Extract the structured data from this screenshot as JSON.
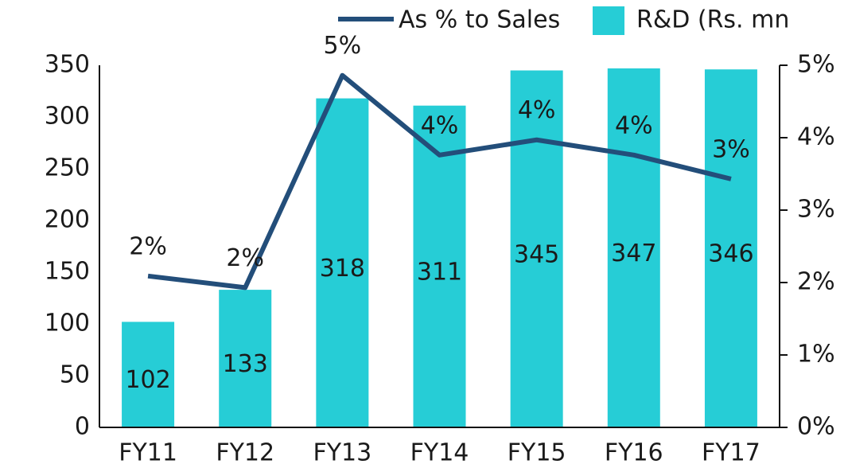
{
  "chart_data": {
    "type": "bar-line",
    "categories": [
      "FY11",
      "FY12",
      "FY13",
      "FY14",
      "FY15",
      "FY16",
      "FY17"
    ],
    "series": [
      {
        "name": "As % to Sales",
        "type": "line",
        "color": "#234e7a",
        "axis": "y2",
        "values": [
          2.09,
          1.93,
          4.86,
          3.76,
          3.97,
          3.76,
          3.43
        ],
        "value_labels": [
          "2%",
          "2%",
          "5%",
          "4%",
          "4%",
          "4%",
          "3%"
        ]
      },
      {
        "name": "R&D (Rs. mn",
        "type": "bar",
        "color": "#26cdd6",
        "values": [
          102,
          133,
          318,
          311,
          345,
          347,
          346
        ]
      }
    ],
    "ylim": [
      0,
      350
    ],
    "yticks": [
      0,
      50,
      100,
      150,
      200,
      250,
      300,
      350
    ],
    "y2lim": [
      0,
      5
    ],
    "y2ticks": [
      {
        "value": 0,
        "label": "0%"
      },
      {
        "value": 1,
        "label": "1%"
      },
      {
        "value": 2,
        "label": "2%"
      },
      {
        "value": 3,
        "label": "3%"
      },
      {
        "value": 4,
        "label": "4%"
      },
      {
        "value": 5,
        "label": "5%"
      }
    ],
    "legend": "top-right"
  }
}
